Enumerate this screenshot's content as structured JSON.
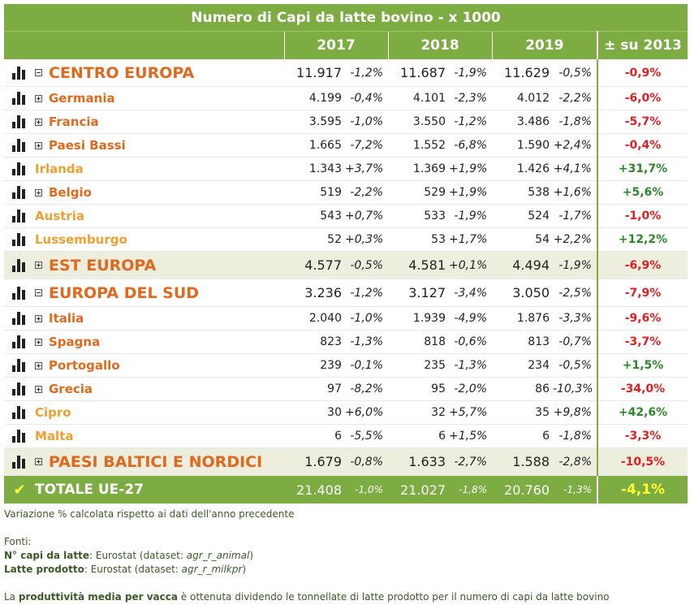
{
  "title": "Numero di Capi da latte bovino - x 1000",
  "headers": {
    "y1": "2017",
    "y2": "2018",
    "y3": "2019",
    "total": "± su 2013"
  },
  "rows": [
    {
      "name": "CENTRO EUROPA",
      "level": "group",
      "toggle": "minus",
      "shade": false,
      "v17": "11.917",
      "p17": "-1,2%",
      "v18": "11.687",
      "p18": "-1,9%",
      "v19": "11.629",
      "p19": "-0,5%",
      "tot": "-0,9%"
    },
    {
      "name": "Germania",
      "level": "country",
      "toggle": "plus",
      "v17": "4.199",
      "p17": "-0,4%",
      "v18": "4.101",
      "p18": "-2,3%",
      "v19": "4.012",
      "p19": "-2,2%",
      "tot": "-6,0%"
    },
    {
      "name": "Francia",
      "level": "country",
      "toggle": "plus",
      "v17": "3.595",
      "p17": "-1,0%",
      "v18": "3.550",
      "p18": "-1,2%",
      "v19": "3.486",
      "p19": "-1,8%",
      "tot": "-5,7%"
    },
    {
      "name": "Paesi Bassi",
      "level": "country",
      "toggle": "plus",
      "v17": "1.665",
      "p17": "-7,2%",
      "v18": "1.552",
      "p18": "-6,8%",
      "v19": "1.590",
      "p19": "+2,4%",
      "tot": "-0,4%"
    },
    {
      "name": "Irlanda",
      "level": "leaf",
      "toggle": "none",
      "v17": "1.343",
      "p17": "+3,7%",
      "v18": "1.369",
      "p18": "+1,9%",
      "v19": "1.426",
      "p19": "+4,1%",
      "tot": "+31,7%"
    },
    {
      "name": "Belgio",
      "level": "country",
      "toggle": "plus",
      "v17": "519",
      "p17": "-2,2%",
      "v18": "529",
      "p18": "+1,9%",
      "v19": "538",
      "p19": "+1,6%",
      "tot": "+5,6%"
    },
    {
      "name": "Austria",
      "level": "leaf",
      "toggle": "none",
      "v17": "543",
      "p17": "+0,7%",
      "v18": "533",
      "p18": "-1,9%",
      "v19": "524",
      "p19": "-1,7%",
      "tot": "-1,0%"
    },
    {
      "name": "Lussemburgo",
      "level": "leaf",
      "toggle": "none",
      "v17": "52",
      "p17": "+0,3%",
      "v18": "53",
      "p18": "+1,7%",
      "v19": "54",
      "p19": "+2,2%",
      "tot": "+12,2%"
    },
    {
      "name": "EST EUROPA",
      "level": "group",
      "toggle": "plus",
      "shade": true,
      "v17": "4.577",
      "p17": "-0,5%",
      "v18": "4.581",
      "p18": "+0,1%",
      "v19": "4.494",
      "p19": "-1,9%",
      "tot": "-6,9%"
    },
    {
      "name": "EUROPA DEL SUD",
      "level": "group",
      "toggle": "minus",
      "shade": false,
      "v17": "3.236",
      "p17": "-1,2%",
      "v18": "3.127",
      "p18": "-3,4%",
      "v19": "3.050",
      "p19": "-2,5%",
      "tot": "-7,9%"
    },
    {
      "name": "Italia",
      "level": "country",
      "toggle": "plus",
      "v17": "2.040",
      "p17": "-1,0%",
      "v18": "1.939",
      "p18": "-4,9%",
      "v19": "1.876",
      "p19": "-3,3%",
      "tot": "-9,6%"
    },
    {
      "name": "Spagna",
      "level": "country",
      "toggle": "plus",
      "v17": "823",
      "p17": "-1,3%",
      "v18": "818",
      "p18": "-0,6%",
      "v19": "813",
      "p19": "-0,7%",
      "tot": "-3,7%"
    },
    {
      "name": "Portogallo",
      "level": "country",
      "toggle": "plus",
      "v17": "239",
      "p17": "-0,1%",
      "v18": "235",
      "p18": "-1,3%",
      "v19": "234",
      "p19": "-0,5%",
      "tot": "+1,5%"
    },
    {
      "name": "Grecia",
      "level": "country",
      "toggle": "plus",
      "v17": "97",
      "p17": "-8,2%",
      "v18": "95",
      "p18": "-2,0%",
      "v19": "86",
      "p19": "-10,3%",
      "tot": "-34,0%"
    },
    {
      "name": "Cipro",
      "level": "leaf",
      "toggle": "none",
      "v17": "30",
      "p17": "+6,0%",
      "v18": "32",
      "p18": "+5,7%",
      "v19": "35",
      "p19": "+9,8%",
      "tot": "+42,6%"
    },
    {
      "name": "Malta",
      "level": "leaf",
      "toggle": "none",
      "v17": "6",
      "p17": "-5,5%",
      "v18": "6",
      "p18": "+1,5%",
      "v19": "6",
      "p19": "-1,8%",
      "tot": "-3,3%"
    },
    {
      "name": "PAESI BALTICI E NORDICI",
      "level": "group",
      "toggle": "plus",
      "shade": true,
      "v17": "1.679",
      "p17": "-0,8%",
      "v18": "1.633",
      "p18": "-2,7%",
      "v19": "1.588",
      "p19": "-2,8%",
      "tot": "-10,5%"
    }
  ],
  "total": {
    "name": "TOTALE UE-27",
    "v17": "21.408",
    "p17": "-1,0%",
    "v18": "21.027",
    "p18": "-1,8%",
    "v19": "20.760",
    "p19": "-1,3%",
    "tot": "-4,1%"
  },
  "notes": {
    "variation": "Variazione % calcolata rispetto ai dati dell'anno precedente",
    "sources_label": "Fonti:",
    "src1_label": "N° capi da latte",
    "src1_text": ": Eurostat (dataset: ",
    "src1_ds": "agr_r_animal",
    "src1_end": ")",
    "src2_label": "Latte prodotto",
    "src2_text": ": Eurostat (dataset: ",
    "src2_ds": "agr_r_milkpr",
    "src2_end": ")",
    "prod_pre": "La ",
    "prod_bold": "produttività media per vacca",
    "prod_post": " è ottenuta dividendo le tonnellate di latte prodotto per il numero di capi da latte bovino"
  },
  "colors": {
    "header_green": "#7cac42",
    "negative": "#e03030",
    "positive": "#2a8a2a",
    "label_orange": "#e0691e",
    "total_yellow": "#ffff33"
  },
  "icons": {
    "row": "bar-chart-icon",
    "expand": "expand-plus-icon",
    "collapse": "collapse-minus-icon",
    "total": "checkmark-icon"
  }
}
